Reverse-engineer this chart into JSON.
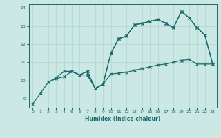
{
  "xlabel": "Humidex (Indice chaleur)",
  "xlim": [
    -0.5,
    23.5
  ],
  "ylim": [
    8.5,
    14.2
  ],
  "yticks": [
    9,
    10,
    11,
    12,
    13,
    14
  ],
  "xticks": [
    0,
    1,
    2,
    3,
    4,
    5,
    6,
    7,
    8,
    9,
    10,
    11,
    12,
    13,
    14,
    15,
    16,
    17,
    18,
    19,
    20,
    21,
    22,
    23
  ],
  "bg_color": "#cce8e4",
  "grid_color": "#add4cf",
  "line_color": "#1a6b6b",
  "line1_x": [
    0,
    1,
    2,
    3,
    4,
    5,
    6,
    7,
    8,
    9,
    10,
    11,
    12,
    13,
    14,
    15,
    16,
    17,
    18,
    19,
    20,
    21,
    22,
    23
  ],
  "line1_y": [
    8.7,
    9.3,
    9.9,
    10.1,
    10.2,
    10.5,
    10.3,
    10.3,
    9.55,
    9.8,
    10.35,
    10.4,
    10.45,
    10.55,
    10.65,
    10.75,
    10.85,
    10.9,
    11.0,
    11.1,
    11.15,
    10.9,
    10.9,
    10.9
  ],
  "line2_x": [
    2,
    3,
    4,
    5,
    6,
    7,
    7,
    8,
    9,
    10,
    11,
    12,
    13,
    14,
    15,
    16,
    17,
    18,
    19,
    20,
    21,
    22,
    23
  ],
  "line2_y": [
    9.9,
    10.15,
    10.5,
    10.5,
    10.3,
    10.5,
    10.3,
    9.55,
    9.8,
    11.5,
    12.3,
    12.45,
    13.05,
    13.15,
    13.25,
    13.35,
    13.15,
    12.9,
    13.8,
    13.45,
    12.9,
    12.5,
    10.9
  ],
  "line3_x": [
    5,
    6,
    7,
    8,
    9,
    10,
    11,
    12,
    13,
    14,
    15,
    16,
    17,
    18,
    19,
    20,
    21,
    22,
    23
  ],
  "line3_y": [
    10.5,
    10.3,
    10.5,
    9.55,
    9.8,
    11.5,
    12.3,
    12.45,
    13.05,
    13.15,
    13.25,
    13.35,
    13.15,
    12.9,
    13.8,
    13.45,
    12.9,
    12.5,
    10.9
  ]
}
